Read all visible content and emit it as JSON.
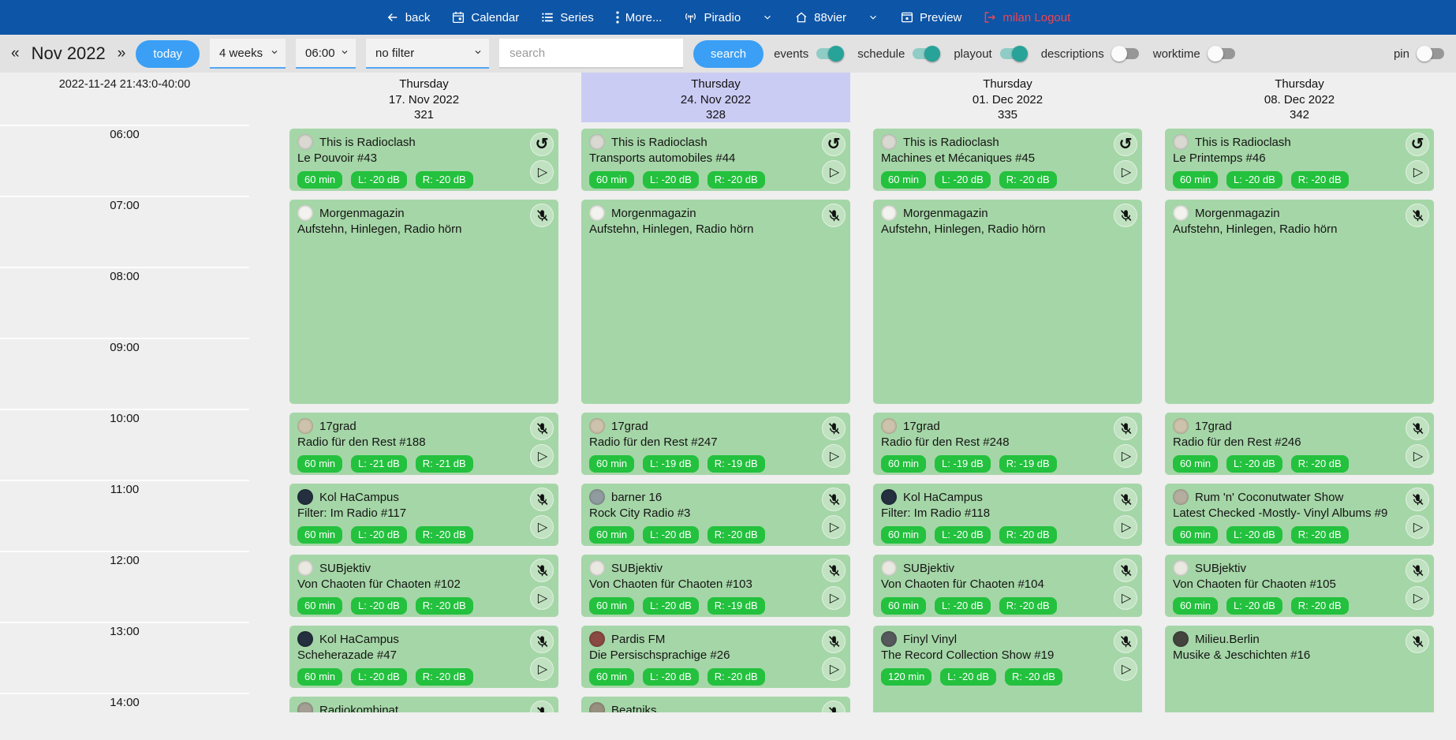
{
  "nav": {
    "back": "back",
    "calendar": "Calendar",
    "series": "Series",
    "more": "More...",
    "piradio": "Piradio",
    "station": "88vier",
    "preview": "Preview",
    "logout": "milan Logout"
  },
  "toolbar": {
    "prev": "«",
    "next": "»",
    "month_label": "Nov 2022",
    "today_label": "today",
    "range_select": "4 weeks",
    "time_select": "06:00",
    "filter_select": "no filter",
    "search_placeholder": "search",
    "search_button": "search",
    "toggles": [
      {
        "label": "events",
        "on": true
      },
      {
        "label": "schedule",
        "on": true
      },
      {
        "label": "playout",
        "on": true
      },
      {
        "label": "descriptions",
        "on": false
      },
      {
        "label": "worktime",
        "on": false
      }
    ],
    "pin_toggle": {
      "label": "pin",
      "on": false
    }
  },
  "calendar": {
    "timestamp": "2022-11-24 21:43:0-40:00",
    "times": [
      "06:00",
      "07:00",
      "08:00",
      "09:00",
      "10:00",
      "11:00",
      "12:00",
      "13:00",
      "14:00"
    ],
    "days": [
      {
        "weekday": "Thursday",
        "date": "17. Nov 2022",
        "day_number": "321",
        "highlighted": false,
        "events": [
          {
            "start": 6,
            "duration": 1,
            "title": "This is Radioclash",
            "subtitle": "Le Pouvoir #43",
            "badges": [
              "60 min",
              "L: -20 dB",
              "R: -20 dB"
            ],
            "corner_icon": "replay-icon",
            "play": true,
            "avatar": "#d9d9d2"
          },
          {
            "start": 7,
            "duration": 3,
            "title": "Morgenmagazin",
            "subtitle": "Aufstehn, Hinlegen, Radio hörn",
            "badges": null,
            "corner_icon": "mic-off-icon",
            "play": false,
            "avatar": "#f2f2ee"
          },
          {
            "start": 10,
            "duration": 1,
            "title": "17grad",
            "subtitle": "Radio für den Rest #188",
            "badges": [
              "60 min",
              "L: -21 dB",
              "R: -21 dB"
            ],
            "corner_icon": "mic-off-icon",
            "play": true,
            "avatar": "#cdc2ab"
          },
          {
            "start": 11,
            "duration": 1,
            "title": "Kol HaCampus",
            "subtitle": "Filter: Im Radio #117",
            "badges": [
              "60 min",
              "L: -20 dB",
              "R: -20 dB"
            ],
            "corner_icon": "mic-off-icon",
            "play": true,
            "avatar": "#243040"
          },
          {
            "start": 12,
            "duration": 1,
            "title": "SUBjektiv",
            "subtitle": "Von Chaoten für Chaoten #102",
            "badges": [
              "60 min",
              "L: -20 dB",
              "R: -20 dB"
            ],
            "corner_icon": "mic-off-icon",
            "play": true,
            "avatar": "#e9e9e2"
          },
          {
            "start": 13,
            "duration": 1,
            "title": "Kol HaCampus",
            "subtitle": "Scheherazade #47",
            "badges": [
              "60 min",
              "L: -20 dB",
              "R: -20 dB"
            ],
            "corner_icon": "mic-off-icon",
            "play": true,
            "avatar": "#243040"
          },
          {
            "start": 14,
            "duration": 1,
            "title": "Radiokombinat",
            "subtitle": "",
            "badges": null,
            "corner_icon": "mic-off-icon",
            "play": false,
            "avatar": "#a39f94"
          }
        ]
      },
      {
        "weekday": "Thursday",
        "date": "24. Nov 2022",
        "day_number": "328",
        "highlighted": true,
        "events": [
          {
            "start": 6,
            "duration": 1,
            "title": "This is Radioclash",
            "subtitle": "Transports automobiles #44",
            "badges": [
              "60 min",
              "L: -20 dB",
              "R: -20 dB"
            ],
            "corner_icon": "replay-icon",
            "play": true,
            "avatar": "#d9d9d2"
          },
          {
            "start": 7,
            "duration": 3,
            "title": "Morgenmagazin",
            "subtitle": "Aufstehn, Hinlegen, Radio hörn",
            "badges": null,
            "corner_icon": "mic-off-icon",
            "play": false,
            "avatar": "#f2f2ee"
          },
          {
            "start": 10,
            "duration": 1,
            "title": "17grad",
            "subtitle": "Radio für den Rest #247",
            "badges": [
              "60 min",
              "L: -19 dB",
              "R: -19 dB"
            ],
            "corner_icon": "mic-off-icon",
            "play": true,
            "avatar": "#cdc2ab"
          },
          {
            "start": 11,
            "duration": 1,
            "title": "barner 16",
            "subtitle": "Rock City Radio #3",
            "badges": [
              "60 min",
              "L: -20 dB",
              "R: -20 dB"
            ],
            "corner_icon": "mic-off-icon",
            "play": true,
            "avatar": "#8f9b9e"
          },
          {
            "start": 12,
            "duration": 1,
            "title": "SUBjektiv",
            "subtitle": "Von Chaoten für Chaoten #103",
            "badges": [
              "60 min",
              "L: -20 dB",
              "R: -19 dB"
            ],
            "corner_icon": "mic-off-icon",
            "play": true,
            "avatar": "#e9e9e2"
          },
          {
            "start": 13,
            "duration": 1,
            "title": "Pardis FM",
            "subtitle": "Die Persischsprachige #26",
            "badges": [
              "60 min",
              "L: -20 dB",
              "R: -20 dB"
            ],
            "corner_icon": "mic-off-icon",
            "play": true,
            "avatar": "#8a4a42"
          },
          {
            "start": 14,
            "duration": 1,
            "title": "Beatniks",
            "subtitle": "",
            "badges": null,
            "corner_icon": "mic-off-icon",
            "play": false,
            "avatar": "#97907f"
          }
        ]
      },
      {
        "weekday": "Thursday",
        "date": "01. Dec 2022",
        "day_number": "335",
        "highlighted": false,
        "events": [
          {
            "start": 6,
            "duration": 1,
            "title": "This is Radioclash",
            "subtitle": "Machines et Mécaniques #45",
            "badges": [
              "60 min",
              "L: -20 dB",
              "R: -20 dB"
            ],
            "corner_icon": "replay-icon",
            "play": true,
            "avatar": "#d9d9d2"
          },
          {
            "start": 7,
            "duration": 3,
            "title": "Morgenmagazin",
            "subtitle": "Aufstehn, Hinlegen, Radio hörn",
            "badges": null,
            "corner_icon": "mic-off-icon",
            "play": false,
            "avatar": "#f2f2ee"
          },
          {
            "start": 10,
            "duration": 1,
            "title": "17grad",
            "subtitle": "Radio für den Rest #248",
            "badges": [
              "60 min",
              "L: -19 dB",
              "R: -19 dB"
            ],
            "corner_icon": "mic-off-icon",
            "play": true,
            "avatar": "#cdc2ab"
          },
          {
            "start": 11,
            "duration": 1,
            "title": "Kol HaCampus",
            "subtitle": "Filter: Im Radio #118",
            "badges": [
              "60 min",
              "L: -20 dB",
              "R: -20 dB"
            ],
            "corner_icon": "mic-off-icon",
            "play": true,
            "avatar": "#243040"
          },
          {
            "start": 12,
            "duration": 1,
            "title": "SUBjektiv",
            "subtitle": "Von Chaoten für Chaoten #104",
            "badges": [
              "60 min",
              "L: -20 dB",
              "R: -20 dB"
            ],
            "corner_icon": "mic-off-icon",
            "play": true,
            "avatar": "#e9e9e2"
          },
          {
            "start": 13,
            "duration": 2,
            "title": "Finyl Vinyl",
            "subtitle": "The Record Collection Show #19",
            "badges": [
              "120 min",
              "L: -20 dB",
              "R: -20 dB"
            ],
            "corner_icon": "mic-off-icon",
            "play": true,
            "avatar": "#55595c"
          }
        ]
      },
      {
        "weekday": "Thursday",
        "date": "08. Dec 2022",
        "day_number": "342",
        "highlighted": false,
        "events": [
          {
            "start": 6,
            "duration": 1,
            "title": "This is Radioclash",
            "subtitle": "Le Printemps #46",
            "badges": [
              "60 min",
              "L: -20 dB",
              "R: -20 dB"
            ],
            "corner_icon": "replay-icon",
            "play": true,
            "avatar": "#d9d9d2"
          },
          {
            "start": 7,
            "duration": 3,
            "title": "Morgenmagazin",
            "subtitle": "Aufstehn, Hinlegen, Radio hörn",
            "badges": null,
            "corner_icon": "mic-off-icon",
            "play": false,
            "avatar": "#f2f2ee"
          },
          {
            "start": 10,
            "duration": 1,
            "title": "17grad",
            "subtitle": "Radio für den Rest #246",
            "badges": [
              "60 min",
              "L: -20 dB",
              "R: -20 dB"
            ],
            "corner_icon": "mic-off-icon",
            "play": true,
            "avatar": "#cdc2ab"
          },
          {
            "start": 11,
            "duration": 1,
            "title": "Rum 'n' Coconutwater Show",
            "subtitle": "Latest Checked -Mostly- Vinyl Albums #9",
            "badges": [
              "60 min",
              "L: -20 dB",
              "R: -20 dB"
            ],
            "corner_icon": "mic-off-icon",
            "play": true,
            "avatar": "#b5ae9f"
          },
          {
            "start": 12,
            "duration": 1,
            "title": "SUBjektiv",
            "subtitle": "Von Chaoten für Chaoten #105",
            "badges": [
              "60 min",
              "L: -20 dB",
              "R: -20 dB"
            ],
            "corner_icon": "mic-off-icon",
            "play": true,
            "avatar": "#e9e9e2"
          },
          {
            "start": 13,
            "duration": 2,
            "title": "Milieu.Berlin",
            "subtitle": "Musike & Jeschichten #16",
            "badges": null,
            "corner_icon": "mic-off-icon",
            "play": false,
            "avatar": "#44443f"
          }
        ]
      }
    ]
  },
  "icons": {
    "play_glyph": "▷",
    "replay_glyph": "↺"
  },
  "colors": {
    "nav_blue": "#0d55a6",
    "accent_blue": "#3b9ff5",
    "toggle_on_teal": "#27a399",
    "card_green": "#a5d6a7",
    "badge_green": "#23c13e",
    "highlight_lavender": "#cbccf4",
    "logout_red": "#ef4453"
  }
}
